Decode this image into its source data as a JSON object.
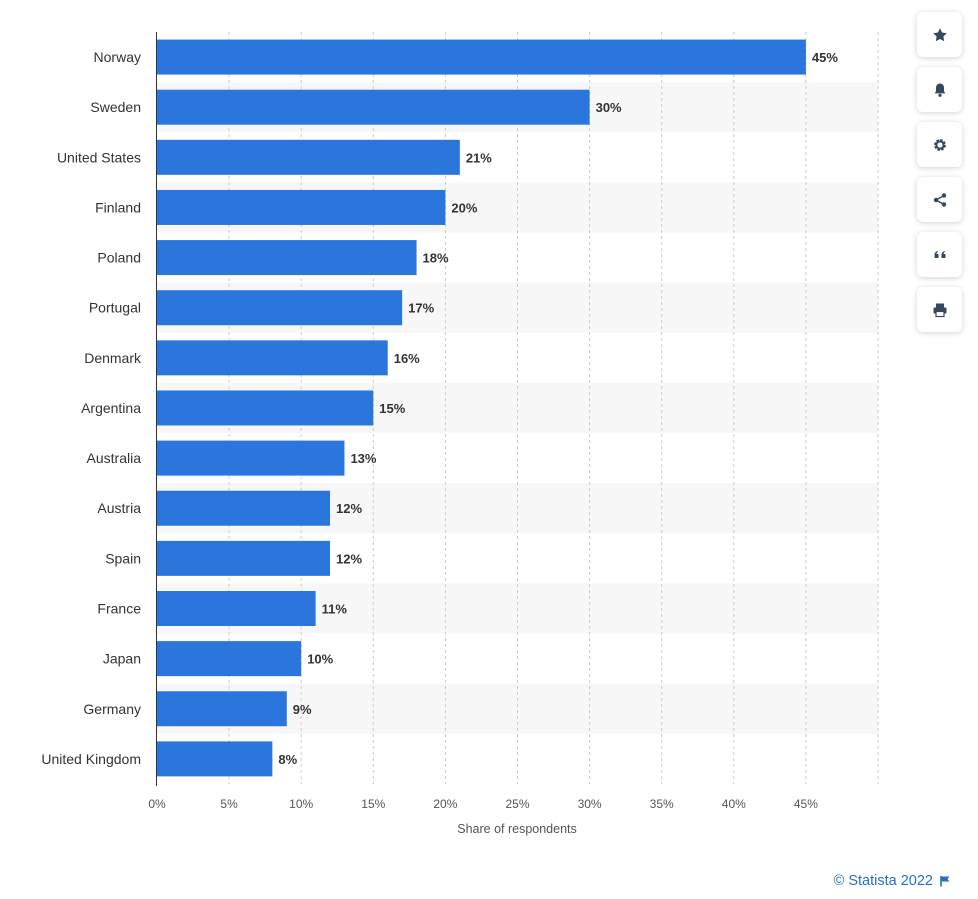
{
  "chart_data": {
    "type": "bar",
    "orientation": "horizontal",
    "categories": [
      "Norway",
      "Sweden",
      "United States",
      "Finland",
      "Poland",
      "Portugal",
      "Denmark",
      "Argentina",
      "Australia",
      "Austria",
      "Spain",
      "France",
      "Japan",
      "Germany",
      "United Kingdom"
    ],
    "values": [
      45,
      30,
      21,
      20,
      18,
      17,
      16,
      15,
      13,
      12,
      12,
      11,
      10,
      9,
      8
    ],
    "value_labels": [
      "45%",
      "30%",
      "21%",
      "20%",
      "18%",
      "17%",
      "16%",
      "15%",
      "13%",
      "12%",
      "12%",
      "11%",
      "10%",
      "9%",
      "8%"
    ],
    "xlabel": "Share of respondents",
    "xlim": [
      0,
      50
    ],
    "xticks": [
      0,
      5,
      10,
      15,
      20,
      25,
      30,
      35,
      40,
      45
    ],
    "xtick_labels": [
      "0%",
      "5%",
      "10%",
      "15%",
      "20%",
      "25%",
      "30%",
      "35%",
      "40%",
      "45%"
    ],
    "bar_color": "#2a76dd",
    "grid": true
  },
  "toolbar": {
    "buttons": [
      {
        "name": "star-button",
        "icon": "star-icon"
      },
      {
        "name": "notification-button",
        "icon": "bell-icon"
      },
      {
        "name": "settings-button",
        "icon": "gear-icon"
      },
      {
        "name": "share-button",
        "icon": "share-icon"
      },
      {
        "name": "cite-button",
        "icon": "quote-icon"
      },
      {
        "name": "print-button",
        "icon": "print-icon"
      }
    ]
  },
  "credit": {
    "text": "© Statista 2022",
    "color": "#2670c4"
  }
}
